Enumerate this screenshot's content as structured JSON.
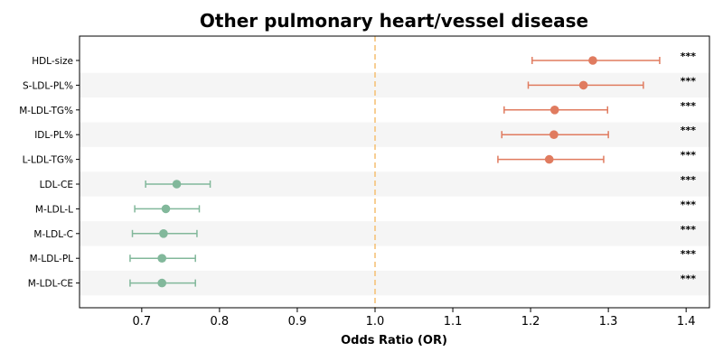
{
  "chart_data": {
    "type": "scatter",
    "title": "Other pulmonary heart/vessel disease",
    "xlabel": "Odds Ratio (OR)",
    "ylabel": "",
    "xlim": [
      0.62,
      1.43
    ],
    "xticks": [
      0.7,
      0.8,
      0.9,
      1.0,
      1.1,
      1.2,
      1.3,
      1.4
    ],
    "xtick_labels": [
      "0.7",
      "0.8",
      "0.9",
      "1.0",
      "1.1",
      "1.2",
      "1.3",
      "1.4"
    ],
    "reference_line": 1.0,
    "grid": false,
    "alternating_row_shading": true,
    "colors": {
      "increased": "#e07b5f",
      "decreased": "#82b89b",
      "reference": "#f5c27a",
      "shade": "#f5f5f5"
    },
    "rows": [
      {
        "label": "HDL-size",
        "or": 1.28,
        "ci_low": 1.202,
        "ci_high": 1.366,
        "significance": "***",
        "direction": "increased"
      },
      {
        "label": "S-LDL-PL%",
        "or": 1.268,
        "ci_low": 1.197,
        "ci_high": 1.345,
        "significance": "***",
        "direction": "increased"
      },
      {
        "label": "M-LDL-TG%",
        "or": 1.231,
        "ci_low": 1.166,
        "ci_high": 1.299,
        "significance": "***",
        "direction": "increased"
      },
      {
        "label": "IDL-PL%",
        "or": 1.23,
        "ci_low": 1.163,
        "ci_high": 1.3,
        "significance": "***",
        "direction": "increased"
      },
      {
        "label": "L-LDL-TG%",
        "or": 1.224,
        "ci_low": 1.158,
        "ci_high": 1.294,
        "significance": "***",
        "direction": "increased"
      },
      {
        "label": "LDL-CE",
        "or": 0.745,
        "ci_low": 0.705,
        "ci_high": 0.788,
        "significance": "***",
        "direction": "decreased"
      },
      {
        "label": "M-LDL-L",
        "or": 0.731,
        "ci_low": 0.691,
        "ci_high": 0.774,
        "significance": "***",
        "direction": "decreased"
      },
      {
        "label": "M-LDL-C",
        "or": 0.728,
        "ci_low": 0.688,
        "ci_high": 0.771,
        "significance": "***",
        "direction": "decreased"
      },
      {
        "label": "M-LDL-PL",
        "or": 0.726,
        "ci_low": 0.685,
        "ci_high": 0.769,
        "significance": "***",
        "direction": "decreased"
      },
      {
        "label": "M-LDL-CE",
        "or": 0.726,
        "ci_low": 0.685,
        "ci_high": 0.769,
        "significance": "***",
        "direction": "decreased"
      }
    ]
  }
}
